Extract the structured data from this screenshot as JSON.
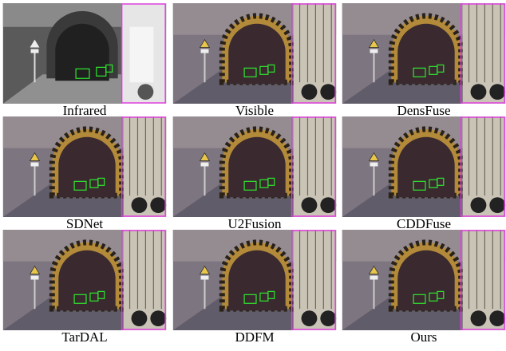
{
  "panels": [
    {
      "label": "Infrared",
      "style": "ir"
    },
    {
      "label": "Visible",
      "style": "vis"
    },
    {
      "label": "DensFuse",
      "style": "vis"
    },
    {
      "label": "SDNet",
      "style": "vis"
    },
    {
      "label": "U2Fusion",
      "style": "vis"
    },
    {
      "label": "CDDFuse",
      "style": "vis"
    },
    {
      "label": "TarDAL",
      "style": "vis"
    },
    {
      "label": "DDFM",
      "style": "vis"
    },
    {
      "label": "Ours",
      "style": "vis"
    }
  ]
}
